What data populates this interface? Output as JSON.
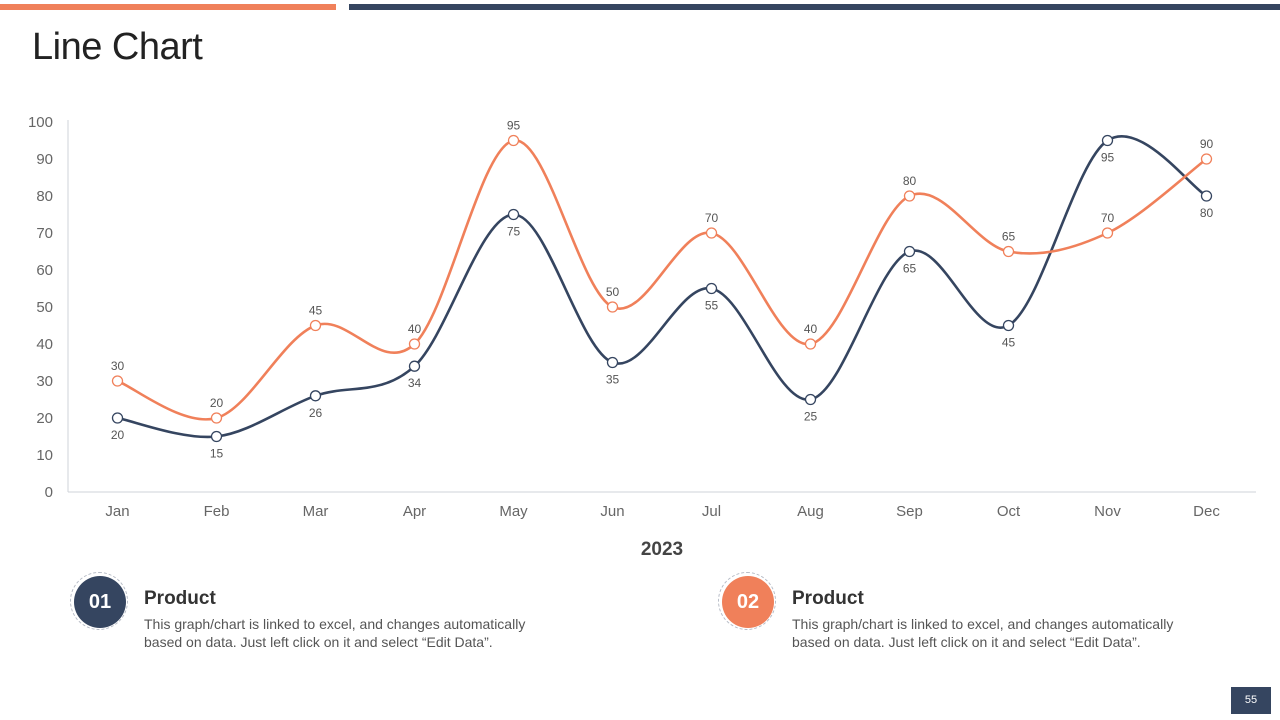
{
  "page": {
    "title": "Line Chart",
    "page_number": "55"
  },
  "colors": {
    "series1": "#354560",
    "series2": "#F0805A",
    "axis": "#cfd3d9",
    "text": "#555555"
  },
  "chart_data": {
    "type": "line",
    "title": "",
    "xlabel": "2023",
    "ylabel": "",
    "ylim": [
      0,
      100
    ],
    "yticks": [
      0,
      10,
      20,
      30,
      40,
      50,
      60,
      70,
      80,
      90,
      100
    ],
    "categories": [
      "Jan",
      "Feb",
      "Mar",
      "Apr",
      "May",
      "Jun",
      "Jul",
      "Aug",
      "Sep",
      "Oct",
      "Nov",
      "Dec"
    ],
    "series": [
      {
        "name": "Product 01",
        "color": "#354560",
        "label_position": "below",
        "values": [
          20,
          15,
          26,
          34,
          75,
          35,
          55,
          25,
          65,
          45,
          95,
          80
        ]
      },
      {
        "name": "Product 02",
        "color": "#F0805A",
        "label_position": "above",
        "values": [
          30,
          20,
          45,
          40,
          95,
          50,
          70,
          40,
          80,
          65,
          70,
          90
        ]
      }
    ]
  },
  "legend": [
    {
      "number": "01",
      "heading": "Product",
      "text": "This graph/chart is linked to excel, and changes automatically based on data. Just left click on it and select “Edit Data”.",
      "color": "#354560"
    },
    {
      "number": "02",
      "heading": "Product",
      "text": "This graph/chart is linked to excel, and changes automatically based on data. Just left click on it and select “Edit Data”.",
      "color": "#F0805A"
    }
  ]
}
